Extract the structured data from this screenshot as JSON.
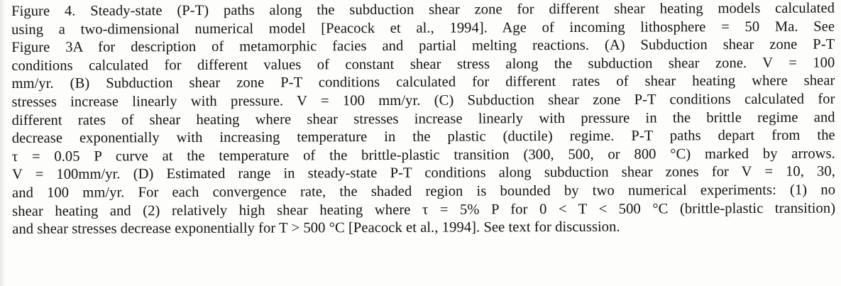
{
  "caption": {
    "lines": [
      "Figure 4.  Steady-state  (P-T)  paths along the subduction shear zone for different shear heating models calculated",
      "using a two-dimensional numerical model [Peacock et al., 1994].  Age of incoming lithosphere  =  50 Ma.   See",
      "Figure 3A for description of metamorphic facies and partial melting reactions.  (A) Subduction shear zone P-T",
      "conditions calculated for different values of constant shear stress along the subduction shear zone.   V =  100",
      "mm/yr.  (B) Subduction shear zone P-T conditions calculated for different rates of shear heating where shear",
      "stresses increase linearly with pressure.  V = 100 mm/yr.  (C)  Subduction shear zone P-T conditions calculated for",
      "different rates of shear heating where shear stresses increase linearly with pressure in the brittle regime and",
      "decrease exponentially with increasing temperature in the plastic (ductile) regime.   P-T paths depart from the",
      "τ = 0.05 P curve at the temperature of the brittle-plastic transition (300, 500, or 800 °C) marked by arrows.",
      "V = 100mm/yr.   (D) Estimated range in steady-state P-T conditions along subduction shear zones for V = 10, 30,",
      "and 100 mm/yr.  For each convergence rate, the shaded region is bounded by two numerical experiments: (1) no",
      "shear heating and (2)  relatively high shear heating where τ = 5% P for 0 < T < 500 °C (brittle-plastic transition)",
      "and shear stresses decrease exponentially for T > 500 °C [Peacock et al., 1994].  See text for discussion."
    ]
  }
}
